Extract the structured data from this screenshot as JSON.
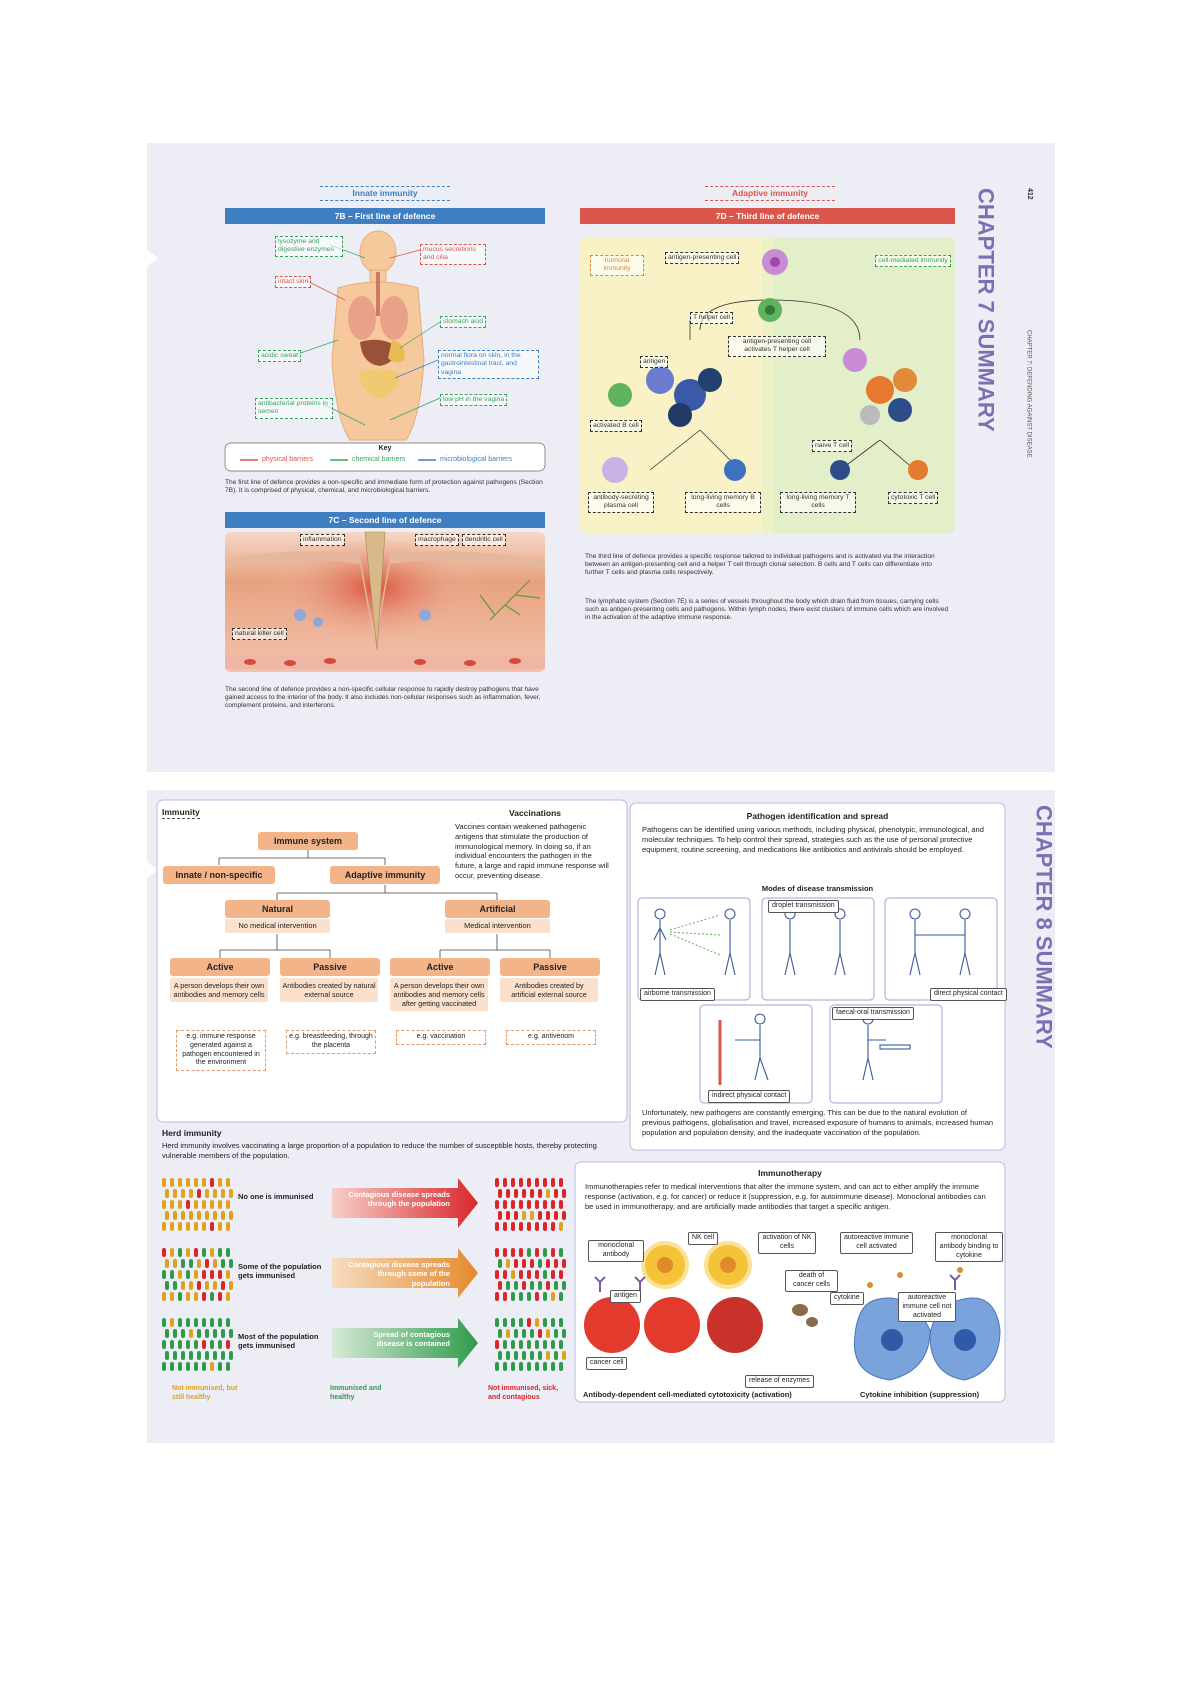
{
  "chapter7": {
    "page_number": "412",
    "heading": "CHAPTER 7 SUMMARY",
    "running_head": "CHAPTER 7: DEFENDING AGAINST DISEASE",
    "innate": {
      "label": "Innate immunity",
      "first_line": {
        "title": "7B – First line of defence",
        "labels": [
          "lysozyme and digestive enzymes",
          "mucus secretions and cilia",
          "intact skin",
          "stomach acid",
          "acidic sweat",
          "normal flora on skin, in the gastrointestinal tract, and vagina",
          "low pH in the vagina",
          "antibacterial proteins in semen"
        ],
        "key": {
          "title": "Key",
          "items": [
            "physical barriers",
            "chemical barriers",
            "microbiological barriers"
          ]
        },
        "caption": "The first line of defence provides a non-specific and immediate form of protection against pathogens (Section 7B). It is comprised of physical, chemical, and microbiological barriers."
      },
      "second_line": {
        "title": "7C – Second line of defence",
        "labels": [
          "inflammation",
          "macrophage",
          "dendritic cell",
          "natural killer cell"
        ],
        "caption": "The second line of defence provides a non-specific cellular response to rapidly destroy pathogens that have gained access to the interior of the body. It also includes non-cellular responses such as inflammation, fever, complement proteins, and interferons."
      }
    },
    "adaptive": {
      "label": "Adaptive immunity",
      "third_line": {
        "title": "7D – Third line of defence",
        "labels": [
          "humoral immunity",
          "cell-mediated immunity",
          "antigen-presenting cell",
          "T helper cell",
          "antigen-presenting cell activates T helper cell",
          "antigen",
          "activated B cell",
          "naive T cell",
          "antibody-secreting plasma cell",
          "long-living memory B cells",
          "long-living memory T cells",
          "cytotoxic T cell"
        ],
        "captions": [
          "The third line of defence provides a specific response tailored to individual pathogens and is activated via the interaction between an antigen-presenting cell and a helper T cell through clonal selection. B cells and T cells can differentiate into further T cells and plasma cells respectively.",
          "The lymphatic system (Section 7E) is a series of vessels throughout the body which drain fluid from tissues, carrying cells such as antigen-presenting cells and pathogens. Within lymph nodes, there exist clusters of immune cells which are involved in the activation of the adaptive immune response."
        ]
      }
    }
  },
  "chapter8": {
    "heading": "CHAPTER 8 SUMMARY",
    "immunity": {
      "title": "Immunity",
      "immune_system": "Immune system",
      "innate": "Innate / non-specific",
      "adaptive": "Adaptive immunity",
      "natural": {
        "title": "Natural",
        "subtitle": "No medical intervention"
      },
      "artificial": {
        "title": "Artificial",
        "subtitle": "Medical intervention"
      },
      "types": [
        {
          "title": "Active",
          "description": "A person develops their own antibodies and memory cells",
          "example": "e.g. immune response generated against a pathogen encountered in the environment"
        },
        {
          "title": "Passive",
          "description": "Antibodies created by natural external source",
          "example": "e.g. breastfeeding, through the placenta"
        },
        {
          "title": "Active",
          "description": "A person develops their own antibodies and memory cells after getting vaccinated",
          "example": "e.g. vaccination"
        },
        {
          "title": "Passive",
          "description": "Antibodies created by artificial external source",
          "example": "e.g. antivenom"
        }
      ]
    },
    "vaccinations": {
      "title": "Vaccinations",
      "text": "Vaccines contain weakened pathogenic antigens that stimulate the production of immunological memory. In doing so, if an individual encounters the pathogen in the future, a large and rapid immune response will occur, preventing disease."
    },
    "herd_immunity": {
      "title": "Herd immunity",
      "text": "Herd immunity involves vaccinating a large proportion of a population to reduce the number of susceptible hosts, thereby protecting vulnerable members of the population.",
      "rows": [
        {
          "label": "No one is immunised",
          "arrow": "Contagious disease spreads through the population"
        },
        {
          "label": "Some of the population gets immunised",
          "arrow": "Contagious disease spreads through some of the population"
        },
        {
          "label": "Most of the population gets immunised",
          "arrow": "Spread of contagious disease is contained"
        }
      ],
      "legend": [
        "Not immunised, but still healthy",
        "Immunised and healthy",
        "Not immunised, sick, and contagious"
      ]
    },
    "pathogen": {
      "title": "Pathogen identification and spread",
      "text": "Pathogens can be identified using various methods, including physical, phenotypic, immunological, and molecular techniques. To help control their spread, strategies such as the use of personal protective equipment, routine screening, and medications like antibiotics and antivirals should be employed.",
      "modes_title": "Modes of disease transmission",
      "modes": [
        "airborne transmission",
        "droplet transmission",
        "direct physical contact",
        "indirect physical contact",
        "faecal-oral transmission"
      ],
      "text2": "Unfortunately, new pathogens are constantly emerging. This can be due to the natural evolution of previous pathogens, globalisation and travel, increased exposure of humans to animals, increased human population and population density, and the inadequate vaccination of the population."
    },
    "immunotherapy": {
      "title": "Immunotherapy",
      "text": "Immunotherapies refer to medical interventions that alter the immune system, and can act to either amplify the immune response (activation, e.g. for cancer) or reduce it (suppression, e.g. for autoimmune disease). Monoclonal antibodies can be used in immunotherapy, and are artificially made antibodies that target a specific antigen.",
      "labels": [
        "monoclonal antibody",
        "NK cell",
        "activation of NK cells",
        "death of cancer cells",
        "antigen",
        "cancer cell",
        "release of enzymes",
        "autoreactive immune cell activated",
        "monoclonal antibody binding to cytokine",
        "cytokine",
        "autoreactive immune cell not activated"
      ],
      "captions": [
        "Antibody-dependent cell-mediated cytotoxicity (activation)",
        "Cytokine inhibition (suppression)"
      ]
    }
  }
}
